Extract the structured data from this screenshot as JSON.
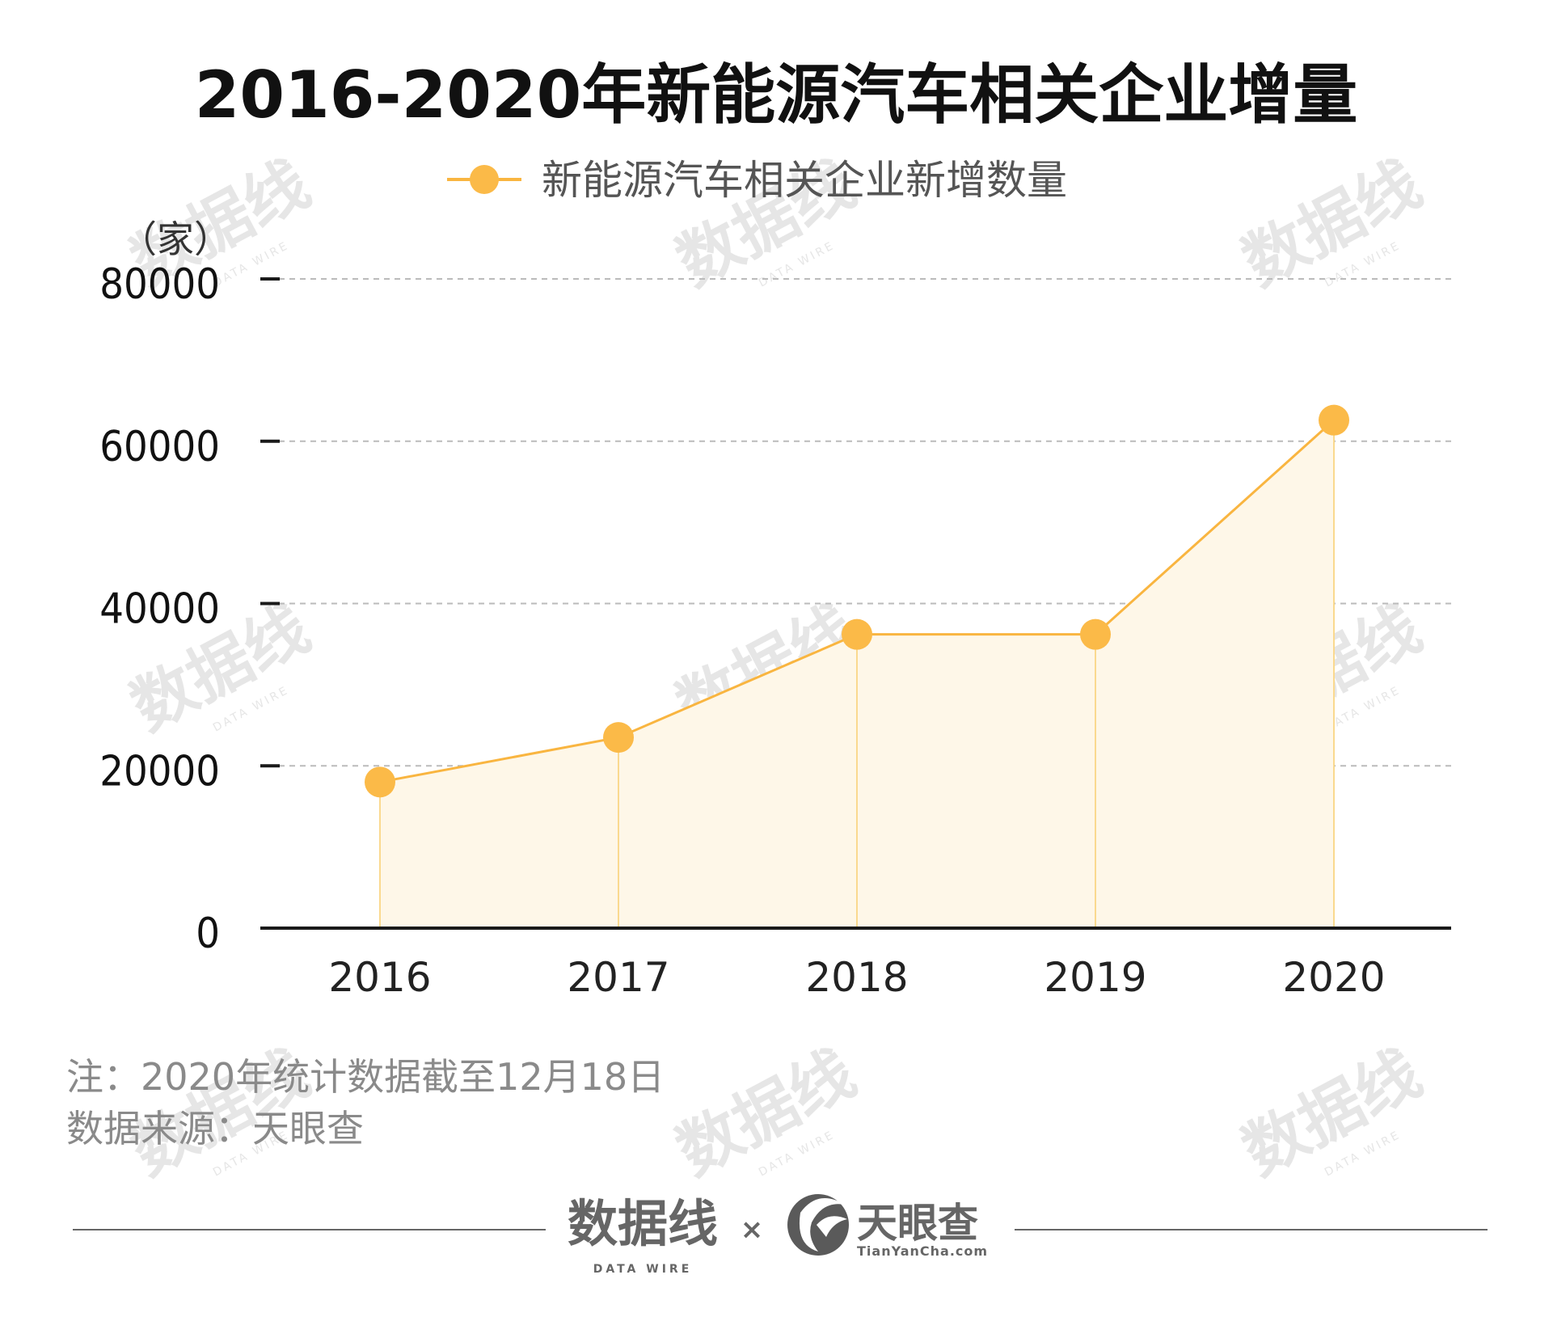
{
  "title": "2016-2020年新能源汽车相关企业增量",
  "legend": {
    "label": "新能源汽车相关企业新增数量",
    "color": "#F9B540"
  },
  "unit_label": "（家）",
  "notes": [
    "注：2020年统计数据截至12月18日",
    "数据来源：天眼查"
  ],
  "footer": {
    "brand1": "数据线",
    "brand1_sub": "DATA WIRE",
    "separator": "×",
    "brand2": "天眼查",
    "brand2_sub": "TianYanCha.com"
  },
  "watermark": {
    "text": "数据线",
    "sub": "DATA WIRE"
  },
  "colors": {
    "line": "#F9B540",
    "marker": "#FBBA48",
    "fill": "#FEF7E8",
    "drop": "#FAD98F",
    "grid": "#BBBBBB",
    "axis": "#1a1a1a"
  },
  "chart_data": {
    "type": "area",
    "x": [
      "2016",
      "2017",
      "2018",
      "2019",
      "2020"
    ],
    "series": [
      {
        "name": "新能源汽车相关企业新增数量",
        "values": [
          18000,
          23500,
          36200,
          36200,
          62600
        ]
      }
    ],
    "ylim": [
      0,
      80000
    ],
    "yticks": [
      "0",
      "20000",
      "40000",
      "60000",
      "80000"
    ],
    "ylabel": "（家）",
    "grid": true,
    "legend_position": "top-center"
  }
}
